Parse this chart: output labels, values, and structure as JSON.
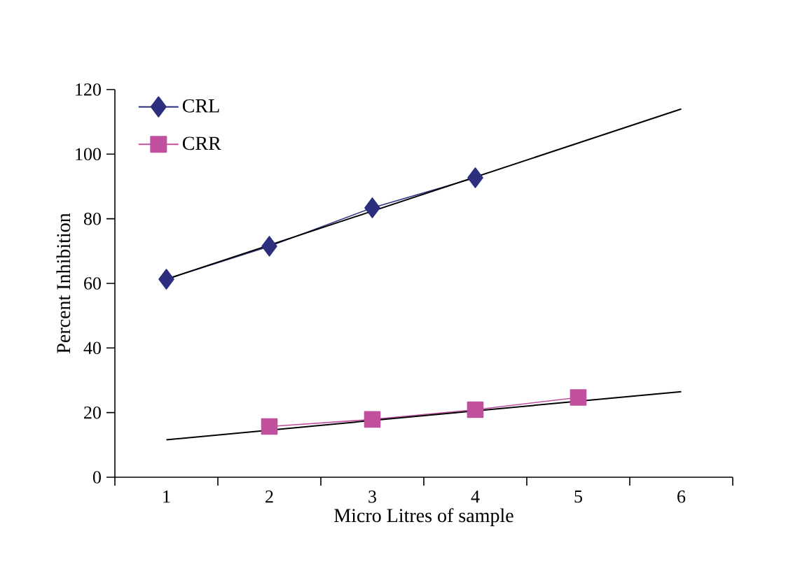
{
  "chart_data": {
    "type": "line",
    "xlabel": "Micro Litres of sample",
    "ylabel": "Percent Inhibition",
    "xlim": [
      0.5,
      6.5
    ],
    "xticks": [
      1,
      2,
      3,
      4,
      5,
      6,
      {
        "value": 0.5,
        "label": null
      },
      {
        "value": 1.5,
        "label": null
      },
      {
        "value": 2.5,
        "label": null
      },
      {
        "value": 3.5,
        "label": null
      },
      {
        "value": 4.5,
        "label": null
      },
      {
        "value": 5.5,
        "label": null
      },
      {
        "value": 6.5,
        "label": null
      }
    ],
    "ylim": [
      0,
      120
    ],
    "yticks": [
      0,
      20,
      40,
      60,
      80,
      100,
      120
    ],
    "grid": false,
    "legend": "top left",
    "line_style": "solid",
    "series": [
      {
        "name": "CRL",
        "color": "#2b2f7e",
        "marker": "diamond",
        "x": [
          1,
          2,
          3,
          4
        ],
        "values": [
          61.3,
          71.5,
          83.4,
          92.7
        ]
      },
      {
        "name": "CRR",
        "color": "#c0509e",
        "marker": "square",
        "x": [
          2,
          3,
          4,
          5
        ],
        "values": [
          15.7,
          17.9,
          20.9,
          24.7
        ]
      },
      {
        "color": "#000000",
        "marker": "none",
        "x": [
          1,
          6
        ],
        "values": [
          61.3,
          114
        ]
      },
      {
        "color": "#000000",
        "marker": "none",
        "x": [
          1,
          6
        ],
        "values": [
          11.6,
          26.5
        ]
      }
    ]
  }
}
